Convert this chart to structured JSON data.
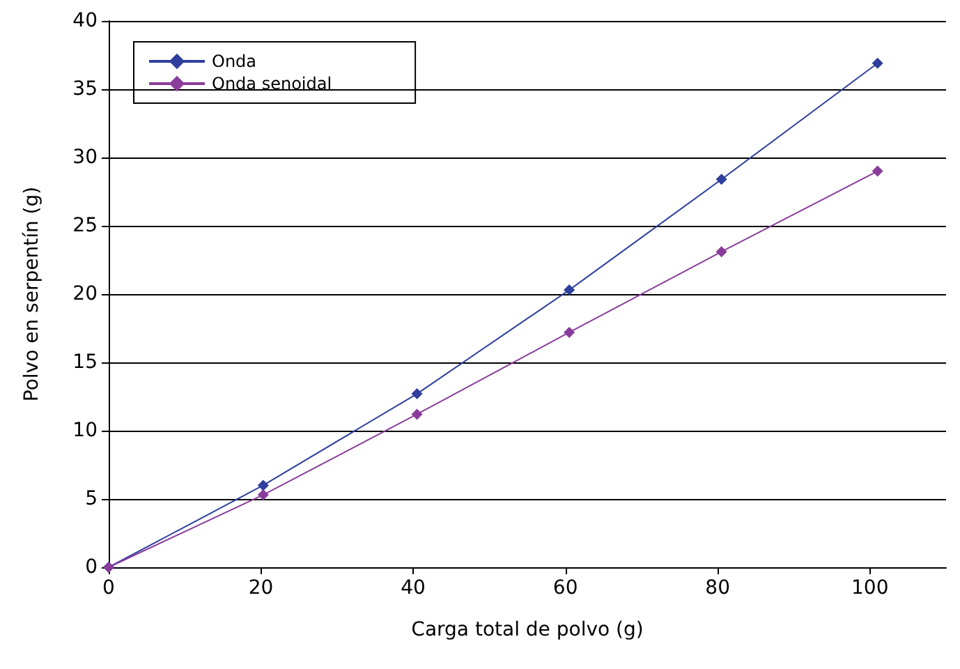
{
  "chart_data": {
    "type": "line",
    "xlabel": "Carga total de polvo (g)",
    "ylabel": "Polvo en serpentín (g)",
    "series": [
      {
        "name": "Onda",
        "color": "#2e3f9e",
        "x": [
          0,
          20.3,
          40.5,
          60.5,
          80.5,
          101
        ],
        "values": [
          0,
          6.0,
          12.7,
          20.3,
          28.4,
          36.9
        ]
      },
      {
        "name": "Onda senoidal",
        "color": "#8a3c9b",
        "x": [
          0,
          20.3,
          40.5,
          60.5,
          80.5,
          101
        ],
        "values": [
          0,
          5.3,
          11.2,
          17.2,
          23.1,
          29.0
        ]
      }
    ],
    "xlim": [
      0,
      110
    ],
    "xticks": [
      0,
      20,
      40,
      60,
      80,
      100
    ],
    "ylim": [
      0,
      40
    ],
    "yticks": [
      0,
      5,
      10,
      15,
      20,
      25,
      30,
      35,
      40
    ],
    "grid": "y",
    "legend": "top left",
    "marker": "diamond",
    "line_style": "solid"
  }
}
